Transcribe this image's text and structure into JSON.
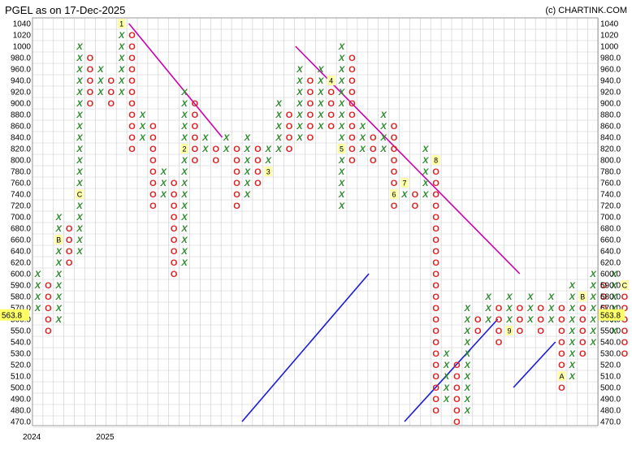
{
  "title": "PGEL as on 17-Dec-2025",
  "credit": "(c) CHARTINK.COM",
  "chart_data": {
    "type": "point-and-figure",
    "symbol": "PGEL",
    "as_of": "17-Dec-2025",
    "x_labels": [
      {
        "col": 0,
        "text": "2024"
      },
      {
        "col": 7,
        "text": "2025"
      }
    ],
    "y_ticks": [
      1040,
      1020,
      1000,
      980,
      960,
      940,
      920,
      900,
      880,
      860,
      840,
      820,
      800,
      780,
      760,
      740,
      720,
      700,
      680,
      660,
      640,
      620,
      600,
      590,
      580,
      570,
      560,
      550,
      540,
      530,
      520,
      510,
      500,
      490,
      480,
      470
    ],
    "y_tick_labels": [
      "1040",
      "1020",
      "1000",
      "980.0",
      "960.0",
      "940.0",
      "920.0",
      "900.0",
      "880.0",
      "860.0",
      "840.0",
      "820.0",
      "800.0",
      "780.0",
      "760.0",
      "740.0",
      "720.0",
      "700.0",
      "680.0",
      "660.0",
      "640.0",
      "620.0",
      "600.0",
      "590.0",
      "580.0",
      "570.0",
      "560.0",
      "550.0",
      "540.0",
      "530.0",
      "520.0",
      "510.0",
      "500.0",
      "490.0",
      "480.0",
      "470.0"
    ],
    "current_price": "563.8",
    "columns": [
      {
        "type": "X",
        "from": 570,
        "to": 600,
        "markers": []
      },
      {
        "type": "O",
        "from": 590,
        "to": 550,
        "markers": []
      },
      {
        "type": "X",
        "from": 560,
        "to": 700,
        "markers": [
          {
            "value": 660,
            "label": "B"
          }
        ]
      },
      {
        "type": "O",
        "from": 680,
        "to": 620,
        "markers": []
      },
      {
        "type": "X",
        "from": 640,
        "to": 1000,
        "markers": [
          {
            "value": 740,
            "label": "C"
          }
        ]
      },
      {
        "type": "O",
        "from": 980,
        "to": 900,
        "markers": []
      },
      {
        "type": "X",
        "from": 920,
        "to": 960,
        "markers": []
      },
      {
        "type": "O",
        "from": 940,
        "to": 900,
        "markers": []
      },
      {
        "type": "X",
        "from": 920,
        "to": 1040,
        "markers": [
          {
            "value": 1040,
            "label": "1"
          }
        ]
      },
      {
        "type": "O",
        "from": 1020,
        "to": 820,
        "markers": []
      },
      {
        "type": "X",
        "from": 840,
        "to": 880,
        "markers": []
      },
      {
        "type": "O",
        "from": 860,
        "to": 720,
        "markers": []
      },
      {
        "type": "X",
        "from": 740,
        "to": 780,
        "markers": []
      },
      {
        "type": "O",
        "from": 760,
        "to": 600,
        "markers": []
      },
      {
        "type": "X",
        "from": 620,
        "to": 920,
        "markers": [
          {
            "value": 820,
            "label": "2"
          }
        ]
      },
      {
        "type": "O",
        "from": 900,
        "to": 800,
        "markers": []
      },
      {
        "type": "X",
        "from": 820,
        "to": 840,
        "markers": []
      },
      {
        "type": "O",
        "from": 820,
        "to": 800,
        "markers": []
      },
      {
        "type": "X",
        "from": 820,
        "to": 840,
        "markers": []
      },
      {
        "type": "O",
        "from": 820,
        "to": 720,
        "markers": []
      },
      {
        "type": "X",
        "from": 740,
        "to": 840,
        "markers": []
      },
      {
        "type": "O",
        "from": 820,
        "to": 760,
        "markers": []
      },
      {
        "type": "X",
        "from": 780,
        "to": 820,
        "markers": [
          {
            "value": 780,
            "label": "3"
          }
        ]
      },
      {
        "type": "X",
        "from": 820,
        "to": 900,
        "markers": []
      },
      {
        "type": "O",
        "from": 880,
        "to": 820,
        "markers": []
      },
      {
        "type": "X",
        "from": 840,
        "to": 960,
        "markers": []
      },
      {
        "type": "O",
        "from": 940,
        "to": 840,
        "markers": []
      },
      {
        "type": "X",
        "from": 860,
        "to": 960,
        "markers": []
      },
      {
        "type": "O",
        "from": 940,
        "to": 860,
        "markers": [
          {
            "value": 940,
            "label": "4"
          }
        ]
      },
      {
        "type": "X",
        "from": 720,
        "to": 1000,
        "markers": [
          {
            "value": 820,
            "label": "5"
          }
        ]
      },
      {
        "type": "O",
        "from": 980,
        "to": 800,
        "markers": []
      },
      {
        "type": "X",
        "from": 820,
        "to": 860,
        "markers": []
      },
      {
        "type": "O",
        "from": 840,
        "to": 800,
        "markers": []
      },
      {
        "type": "X",
        "from": 820,
        "to": 880,
        "markers": []
      },
      {
        "type": "O",
        "from": 860,
        "to": 720,
        "markers": [
          {
            "value": 740,
            "label": "6"
          }
        ]
      },
      {
        "type": "X",
        "from": 740,
        "to": 760,
        "markers": [
          {
            "value": 760,
            "label": "7"
          }
        ]
      },
      {
        "type": "O",
        "from": 740,
        "to": 720,
        "markers": []
      },
      {
        "type": "X",
        "from": 740,
        "to": 820,
        "markers": []
      },
      {
        "type": "O",
        "from": 800,
        "to": 480,
        "markers": [
          {
            "value": 800,
            "label": "8"
          }
        ]
      },
      {
        "type": "X",
        "from": 490,
        "to": 530,
        "markers": []
      },
      {
        "type": "O",
        "from": 520,
        "to": 470,
        "markers": []
      },
      {
        "type": "X",
        "from": 480,
        "to": 570,
        "markers": []
      },
      {
        "type": "O",
        "from": 560,
        "to": 550,
        "markers": []
      },
      {
        "type": "X",
        "from": 560,
        "to": 580,
        "markers": []
      },
      {
        "type": "O",
        "from": 570,
        "to": 540,
        "markers": []
      },
      {
        "type": "X",
        "from": 550,
        "to": 580,
        "markers": [
          {
            "value": 550,
            "label": "9"
          }
        ]
      },
      {
        "type": "O",
        "from": 570,
        "to": 550,
        "markers": []
      },
      {
        "type": "X",
        "from": 560,
        "to": 580,
        "markers": []
      },
      {
        "type": "O",
        "from": 570,
        "to": 550,
        "markers": []
      },
      {
        "type": "X",
        "from": 560,
        "to": 580,
        "markers": []
      },
      {
        "type": "O",
        "from": 570,
        "to": 500,
        "markers": [
          {
            "value": 510,
            "label": "A"
          }
        ]
      },
      {
        "type": "X",
        "from": 510,
        "to": 590,
        "markers": []
      },
      {
        "type": "O",
        "from": 580,
        "to": 530,
        "markers": [
          {
            "value": 580,
            "label": "B"
          }
        ]
      },
      {
        "type": "X",
        "from": 540,
        "to": 600,
        "markers": []
      },
      {
        "type": "O",
        "from": 590,
        "to": 570,
        "markers": []
      },
      {
        "type": "X",
        "from": 550,
        "to": 600,
        "markers": []
      },
      {
        "type": "O",
        "from": 590,
        "to": 530,
        "markers": [
          {
            "value": 590,
            "label": "C"
          }
        ]
      },
      {
        "type": "X",
        "from": 540,
        "to": 570,
        "markers": []
      }
    ],
    "trendlines": [
      {
        "color": "#cc00aa",
        "from": {
          "col": 8.7,
          "value": 1040
        },
        "to": {
          "col": 17.6,
          "value": 840
        }
      },
      {
        "color": "#cc00aa",
        "from": {
          "col": 24.6,
          "value": 1000
        },
        "to": {
          "col": 46.0,
          "value": 600
        }
      },
      {
        "color": "#1a1adf",
        "from": {
          "col": 19.5,
          "value": 470
        },
        "to": {
          "col": 31.6,
          "value": 600
        }
      },
      {
        "color": "#1a1adf",
        "from": {
          "col": 35.0,
          "value": 470
        },
        "to": {
          "col": 43.9,
          "value": 560
        }
      },
      {
        "color": "#1a1adf",
        "from": {
          "col": 45.4,
          "value": 500
        },
        "to": {
          "col": 49.4,
          "value": 540
        }
      }
    ],
    "grid": true,
    "colors": {
      "x": "#2e8b2e",
      "o": "#e02020",
      "grid": "#cccccc",
      "marker_bg": "#ffffaa",
      "price_bg": "#ffff66"
    }
  }
}
